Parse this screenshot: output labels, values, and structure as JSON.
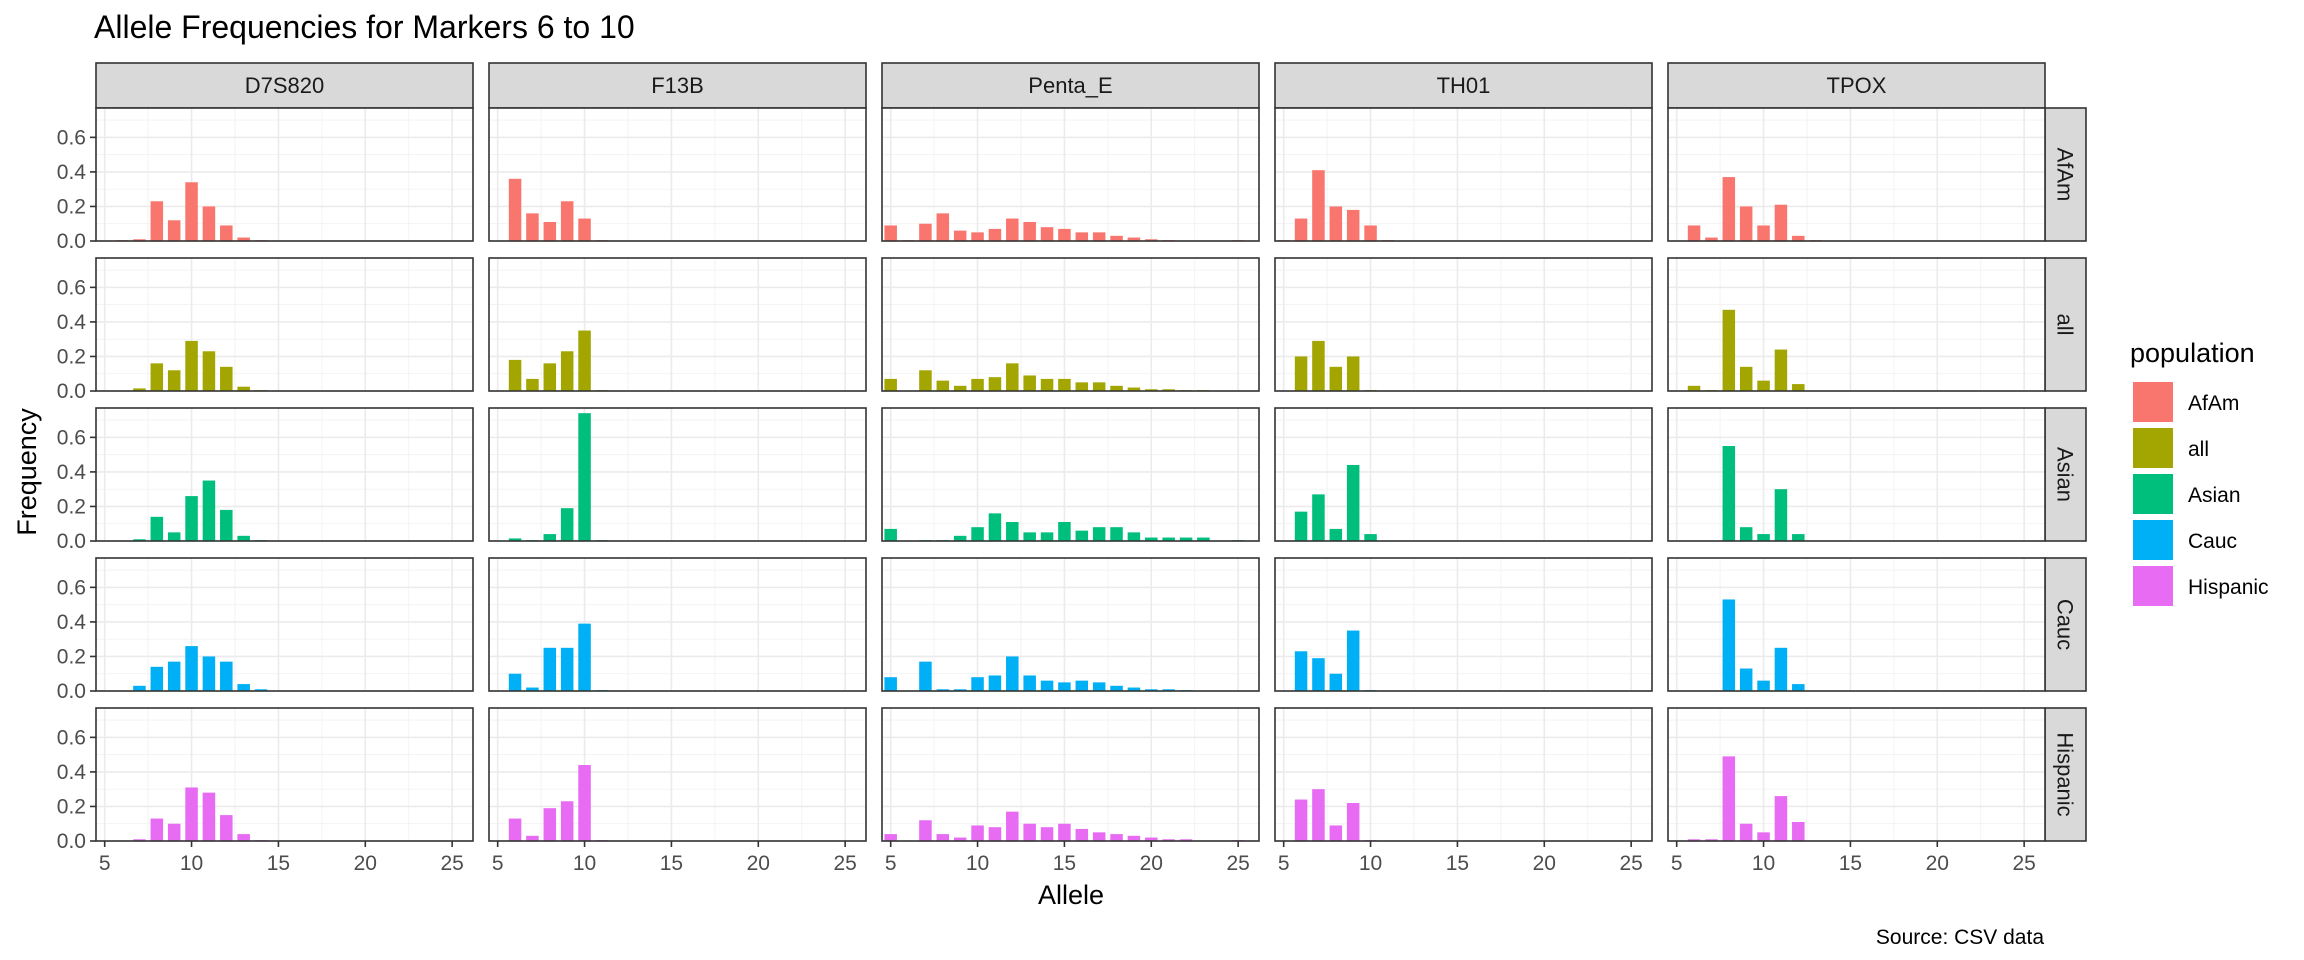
{
  "chart_data": {
    "type": "bar",
    "title": "Allele Frequencies for Markers 6 to 10",
    "caption": "Source: CSV data",
    "xlabel": "Allele",
    "ylabel": "Frequency",
    "xlim": [
      4.5,
      26.2
    ],
    "ylim": [
      0,
      0.77
    ],
    "xticks": [
      5,
      10,
      15,
      20,
      25
    ],
    "xtick_labels": [
      "5",
      "10",
      "15",
      "20",
      "25"
    ],
    "yticks": [
      0,
      0.2,
      0.4,
      0.6
    ],
    "ytick_labels": [
      "0.0",
      "0.2",
      "0.4",
      "0.6"
    ],
    "grid": true,
    "legend": {
      "title": "population",
      "position": "right",
      "entries": [
        {
          "name": "AfAm",
          "color": "#F8766D"
        },
        {
          "name": "all",
          "color": "#A3A500"
        },
        {
          "name": "Asian",
          "color": "#00BF7D"
        },
        {
          "name": "Cauc",
          "color": "#00B0F6"
        },
        {
          "name": "Hispanic",
          "color": "#E76BF3"
        }
      ]
    },
    "markers": [
      "D7S820",
      "F13B",
      "Penta_E",
      "TH01",
      "TPOX"
    ],
    "populations": [
      "AfAm",
      "all",
      "Asian",
      "Cauc",
      "Hispanic"
    ],
    "colors": {
      "AfAm": "#F8766D",
      "all": "#A3A500",
      "Asian": "#00BF7D",
      "Cauc": "#00B0F6",
      "Hispanic": "#E76BF3"
    },
    "facets": {
      "D7S820": {
        "AfAm": [
          [
            6,
            0.005
          ],
          [
            7,
            0.01
          ],
          [
            8,
            0.23
          ],
          [
            9,
            0.12
          ],
          [
            10,
            0.34
          ],
          [
            11,
            0.2
          ],
          [
            12,
            0.09
          ],
          [
            13,
            0.02
          ],
          [
            14,
            0.005
          ]
        ],
        "all": [
          [
            7,
            0.015
          ],
          [
            8,
            0.16
          ],
          [
            9,
            0.12
          ],
          [
            10,
            0.29
          ],
          [
            11,
            0.23
          ],
          [
            12,
            0.14
          ],
          [
            13,
            0.025
          ],
          [
            14,
            0.005
          ]
        ],
        "Asian": [
          [
            7,
            0.01
          ],
          [
            8,
            0.14
          ],
          [
            9,
            0.05
          ],
          [
            10,
            0.26
          ],
          [
            11,
            0.35
          ],
          [
            12,
            0.18
          ],
          [
            13,
            0.03
          ],
          [
            14,
            0.005
          ]
        ],
        "Cauc": [
          [
            7,
            0.03
          ],
          [
            8,
            0.14
          ],
          [
            9,
            0.17
          ],
          [
            10,
            0.26
          ],
          [
            11,
            0.2
          ],
          [
            12,
            0.17
          ],
          [
            13,
            0.04
          ],
          [
            14,
            0.01
          ]
        ],
        "Hispanic": [
          [
            7,
            0.01
          ],
          [
            8,
            0.13
          ],
          [
            9,
            0.1
          ],
          [
            10,
            0.31
          ],
          [
            11,
            0.28
          ],
          [
            12,
            0.15
          ],
          [
            13,
            0.04
          ],
          [
            14,
            0.005
          ]
        ]
      },
      "F13B": {
        "AfAm": [
          [
            6,
            0.36
          ],
          [
            7,
            0.16
          ],
          [
            8,
            0.11
          ],
          [
            9,
            0.23
          ],
          [
            10,
            0.13
          ],
          [
            11,
            0.005
          ]
        ],
        "all": [
          [
            6,
            0.18
          ],
          [
            7,
            0.07
          ],
          [
            8,
            0.16
          ],
          [
            9,
            0.23
          ],
          [
            10,
            0.35
          ],
          [
            11,
            0.005
          ]
        ],
        "Asian": [
          [
            6,
            0.015
          ],
          [
            7,
            0.005
          ],
          [
            8,
            0.04
          ],
          [
            9,
            0.19
          ],
          [
            10,
            0.74
          ],
          [
            11,
            0.005
          ]
        ],
        "Cauc": [
          [
            6,
            0.1
          ],
          [
            7,
            0.02
          ],
          [
            8,
            0.25
          ],
          [
            9,
            0.25
          ],
          [
            10,
            0.39
          ],
          [
            11,
            0.005
          ]
        ],
        "Hispanic": [
          [
            6,
            0.13
          ],
          [
            7,
            0.03
          ],
          [
            8,
            0.19
          ],
          [
            9,
            0.23
          ],
          [
            10,
            0.44
          ],
          [
            11,
            0.005
          ]
        ]
      },
      "Penta_E": {
        "AfAm": [
          [
            5,
            0.09
          ],
          [
            6,
            0.005
          ],
          [
            7,
            0.1
          ],
          [
            8,
            0.16
          ],
          [
            9,
            0.06
          ],
          [
            10,
            0.05
          ],
          [
            11,
            0.07
          ],
          [
            12,
            0.13
          ],
          [
            13,
            0.11
          ],
          [
            14,
            0.08
          ],
          [
            15,
            0.07
          ],
          [
            16,
            0.05
          ],
          [
            17,
            0.05
          ],
          [
            18,
            0.03
          ],
          [
            19,
            0.02
          ],
          [
            20,
            0.01
          ],
          [
            21,
            0.005
          ],
          [
            25,
            0.005
          ]
        ],
        "all": [
          [
            5,
            0.07
          ],
          [
            7,
            0.12
          ],
          [
            8,
            0.06
          ],
          [
            9,
            0.03
          ],
          [
            10,
            0.07
          ],
          [
            11,
            0.08
          ],
          [
            12,
            0.16
          ],
          [
            13,
            0.09
          ],
          [
            14,
            0.07
          ],
          [
            15,
            0.07
          ],
          [
            16,
            0.05
          ],
          [
            17,
            0.05
          ],
          [
            18,
            0.03
          ],
          [
            19,
            0.02
          ],
          [
            20,
            0.01
          ],
          [
            21,
            0.01
          ],
          [
            22,
            0.005
          ],
          [
            23,
            0.005
          ]
        ],
        "Asian": [
          [
            5,
            0.07
          ],
          [
            7,
            0.005
          ],
          [
            8,
            0.005
          ],
          [
            9,
            0.03
          ],
          [
            10,
            0.08
          ],
          [
            11,
            0.16
          ],
          [
            12,
            0.11
          ],
          [
            13,
            0.05
          ],
          [
            14,
            0.05
          ],
          [
            15,
            0.11
          ],
          [
            16,
            0.06
          ],
          [
            17,
            0.08
          ],
          [
            18,
            0.08
          ],
          [
            19,
            0.05
          ],
          [
            20,
            0.02
          ],
          [
            21,
            0.02
          ],
          [
            22,
            0.02
          ],
          [
            23,
            0.02
          ],
          [
            25,
            0.005
          ]
        ],
        "Cauc": [
          [
            5,
            0.08
          ],
          [
            7,
            0.17
          ],
          [
            8,
            0.01
          ],
          [
            9,
            0.01
          ],
          [
            10,
            0.08
          ],
          [
            11,
            0.09
          ],
          [
            12,
            0.2
          ],
          [
            13,
            0.09
          ],
          [
            14,
            0.06
          ],
          [
            15,
            0.05
          ],
          [
            16,
            0.06
          ],
          [
            17,
            0.05
          ],
          [
            18,
            0.03
          ],
          [
            19,
            0.02
          ],
          [
            20,
            0.01
          ],
          [
            21,
            0.01
          ],
          [
            22,
            0.005
          ]
        ],
        "Hispanic": [
          [
            5,
            0.04
          ],
          [
            7,
            0.12
          ],
          [
            8,
            0.04
          ],
          [
            9,
            0.02
          ],
          [
            10,
            0.09
          ],
          [
            11,
            0.08
          ],
          [
            12,
            0.17
          ],
          [
            13,
            0.1
          ],
          [
            14,
            0.08
          ],
          [
            15,
            0.1
          ],
          [
            16,
            0.07
          ],
          [
            17,
            0.05
          ],
          [
            18,
            0.04
          ],
          [
            19,
            0.03
          ],
          [
            20,
            0.02
          ],
          [
            21,
            0.01
          ],
          [
            22,
            0.01
          ],
          [
            25,
            0.005
          ]
        ]
      },
      "TH01": {
        "AfAm": [
          [
            5,
            0.005
          ],
          [
            6,
            0.13
          ],
          [
            7,
            0.41
          ],
          [
            8,
            0.2
          ],
          [
            9,
            0.18
          ],
          [
            10,
            0.09
          ],
          [
            11,
            0.005
          ]
        ],
        "all": [
          [
            6,
            0.2
          ],
          [
            7,
            0.29
          ],
          [
            8,
            0.14
          ],
          [
            9,
            0.2
          ],
          [
            10,
            0.005
          ]
        ],
        "Asian": [
          [
            6,
            0.17
          ],
          [
            7,
            0.27
          ],
          [
            8,
            0.07
          ],
          [
            9,
            0.44
          ],
          [
            10,
            0.04
          ]
        ],
        "Cauc": [
          [
            6,
            0.23
          ],
          [
            7,
            0.19
          ],
          [
            8,
            0.1
          ],
          [
            9,
            0.35
          ],
          [
            10,
            0.005
          ]
        ],
        "Hispanic": [
          [
            6,
            0.24
          ],
          [
            7,
            0.3
          ],
          [
            8,
            0.09
          ],
          [
            9,
            0.22
          ],
          [
            10,
            0.005
          ]
        ]
      },
      "TPOX": {
        "AfAm": [
          [
            6,
            0.09
          ],
          [
            7,
            0.02
          ],
          [
            8,
            0.37
          ],
          [
            9,
            0.2
          ],
          [
            10,
            0.09
          ],
          [
            11,
            0.21
          ],
          [
            12,
            0.03
          ],
          [
            13,
            0.005
          ]
        ],
        "all": [
          [
            6,
            0.03
          ],
          [
            7,
            0.005
          ],
          [
            8,
            0.47
          ],
          [
            9,
            0.14
          ],
          [
            10,
            0.06
          ],
          [
            11,
            0.24
          ],
          [
            12,
            0.04
          ]
        ],
        "Asian": [
          [
            8,
            0.55
          ],
          [
            9,
            0.08
          ],
          [
            10,
            0.04
          ],
          [
            11,
            0.3
          ],
          [
            12,
            0.04
          ]
        ],
        "Cauc": [
          [
            8,
            0.53
          ],
          [
            9,
            0.13
          ],
          [
            10,
            0.06
          ],
          [
            11,
            0.25
          ],
          [
            12,
            0.04
          ]
        ],
        "Hispanic": [
          [
            6,
            0.01
          ],
          [
            7,
            0.01
          ],
          [
            8,
            0.49
          ],
          [
            9,
            0.1
          ],
          [
            10,
            0.05
          ],
          [
            11,
            0.26
          ],
          [
            12,
            0.11
          ]
        ]
      }
    }
  }
}
